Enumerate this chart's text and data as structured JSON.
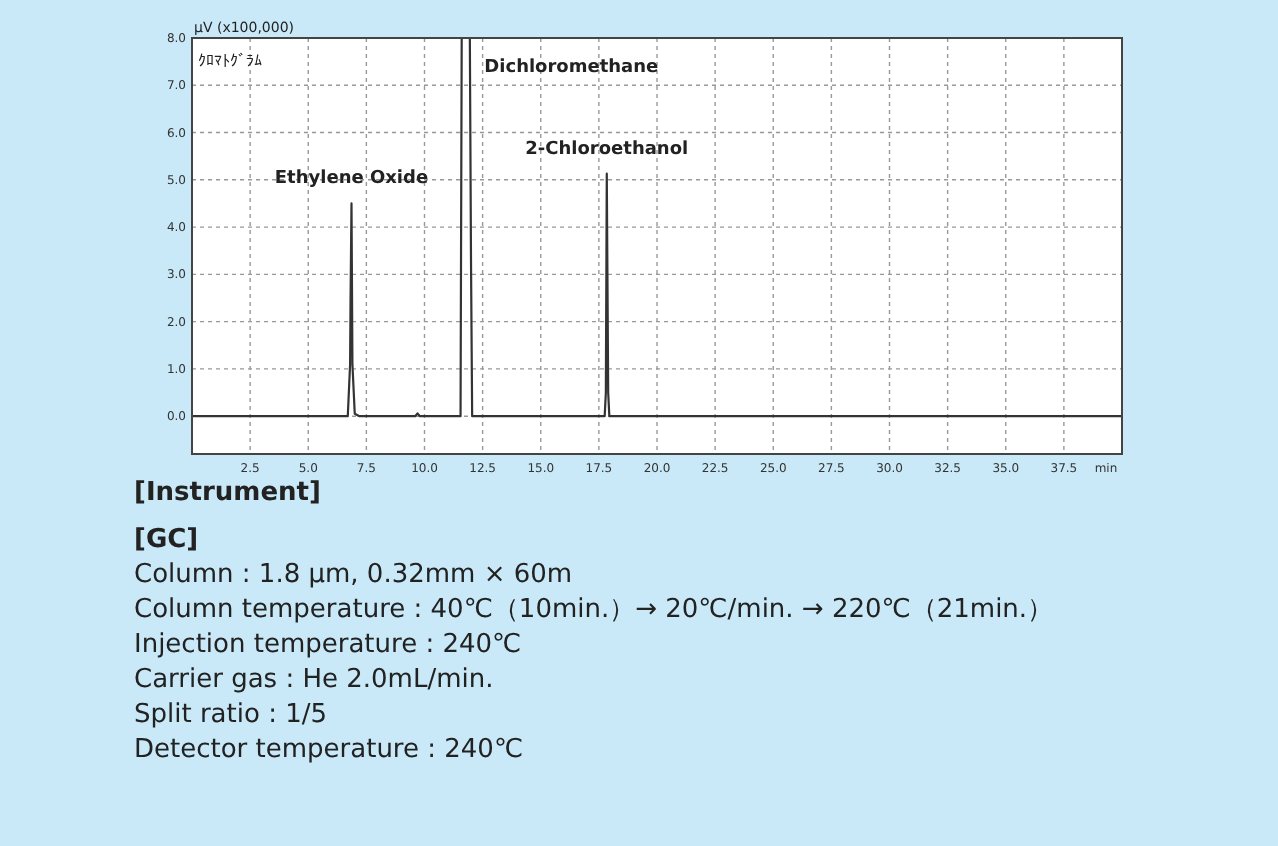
{
  "chart_data": {
    "type": "line",
    "ylabel": "μV (x100,000)",
    "xlabel": "min",
    "x": [
      0,
      6.7,
      6.8,
      6.82,
      6.86,
      6.9,
      7.0,
      7.2,
      9.6,
      9.7,
      9.8,
      11.55,
      11.6,
      11.95,
      12.0,
      12.05,
      17.75,
      17.8,
      17.84,
      17.9,
      17.95,
      40
    ],
    "series": [
      {
        "color": "#333333",
        "values": [
          0,
          0,
          1.1,
          2.5,
          4.5,
          1.1,
          0.05,
          0,
          0,
          0.06,
          0,
          0,
          8.0,
          8.0,
          3.3,
          0,
          0,
          0.5,
          5.13,
          0.5,
          0,
          0
        ]
      }
    ],
    "xlim": [
      0,
      40
    ],
    "ylim": [
      -0.8,
      8.0
    ],
    "xticks": [
      {
        "value": 2.5,
        "label": "2.5"
      },
      {
        "value": 5,
        "label": "5.0"
      },
      {
        "value": 7.5,
        "label": "7.5"
      },
      {
        "value": 10,
        "label": "10.0"
      },
      {
        "value": 12.5,
        "label": "12.5"
      },
      {
        "value": 15,
        "label": "15.0"
      },
      {
        "value": 17.5,
        "label": "17.5"
      },
      {
        "value": 20,
        "label": "20.0"
      },
      {
        "value": 22.5,
        "label": "22.5"
      },
      {
        "value": 25,
        "label": "25.0"
      },
      {
        "value": 27.5,
        "label": "27.5"
      },
      {
        "value": 30,
        "label": "30.0"
      },
      {
        "value": 32.5,
        "label": "32.5"
      },
      {
        "value": 35,
        "label": "35.0"
      },
      {
        "value": 37.5,
        "label": "37.5"
      }
    ],
    "yticks": [
      {
        "value": 0,
        "label": "0.0"
      },
      {
        "value": 1,
        "label": "1.0"
      },
      {
        "value": 2,
        "label": "2.0"
      },
      {
        "value": 3,
        "label": "3.0"
      },
      {
        "value": 4,
        "label": "4.0"
      },
      {
        "value": 5,
        "label": "5.0"
      },
      {
        "value": 6,
        "label": "6.0"
      },
      {
        "value": 7,
        "label": "7.0"
      },
      {
        "value": 8,
        "label": "8.0"
      }
    ],
    "grid": true,
    "marker": "none",
    "line_style": "solid",
    "annotations": [
      {
        "text": "Ethylene Oxide",
        "x": 6.86,
        "y": 4.5
      },
      {
        "text": "Dichloromethane",
        "x": 11.8,
        "y": 8.0
      },
      {
        "text": "2-Chloroethanol",
        "x": 17.84,
        "y": 5.13
      },
      "ｸﾛﾏﾄｸﾞﾗﾑ",
      "[Instrument]",
      "[GC]",
      "Column : 1.8 μm, 0.32mm × 60m",
      "Column temperature : 40℃（10min.）→ 20℃/min. → 220℃（21min.）",
      "Injection temperature : 240℃",
      "Carrier gas : He 2.0mL/min.",
      "Split ratio : 1/5",
      "Detector temperature : 240℃"
    ]
  }
}
